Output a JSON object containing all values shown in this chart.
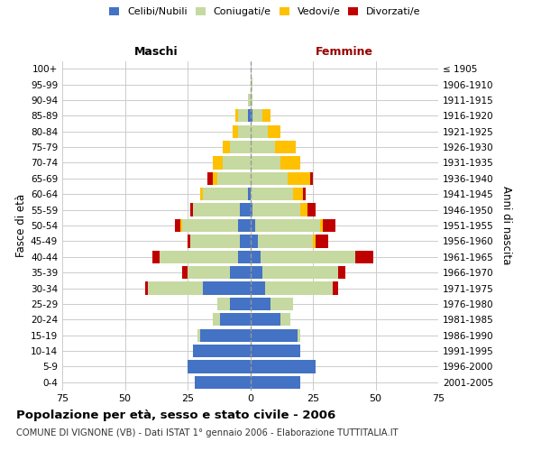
{
  "age_groups": [
    "0-4",
    "5-9",
    "10-14",
    "15-19",
    "20-24",
    "25-29",
    "30-34",
    "35-39",
    "40-44",
    "45-49",
    "50-54",
    "55-59",
    "60-64",
    "65-69",
    "70-74",
    "75-79",
    "80-84",
    "85-89",
    "90-94",
    "95-99",
    "100+"
  ],
  "birth_years": [
    "2001-2005",
    "1996-2000",
    "1991-1995",
    "1986-1990",
    "1981-1985",
    "1976-1980",
    "1971-1975",
    "1966-1970",
    "1961-1965",
    "1956-1960",
    "1951-1955",
    "1946-1950",
    "1941-1945",
    "1936-1940",
    "1931-1935",
    "1926-1930",
    "1921-1925",
    "1916-1920",
    "1911-1915",
    "1906-1910",
    "≤ 1905"
  ],
  "male": {
    "celibe": [
      22,
      25,
      23,
      20,
      12,
      8,
      19,
      8,
      5,
      4,
      5,
      4,
      1,
      0,
      0,
      0,
      0,
      1,
      0,
      0,
      0
    ],
    "coniugato": [
      0,
      0,
      0,
      1,
      3,
      5,
      22,
      17,
      31,
      20,
      22,
      19,
      18,
      13,
      11,
      8,
      5,
      4,
      1,
      0,
      0
    ],
    "vedovo": [
      0,
      0,
      0,
      0,
      0,
      0,
      0,
      0,
      0,
      0,
      1,
      0,
      1,
      2,
      4,
      3,
      2,
      1,
      0,
      0,
      0
    ],
    "divorziato": [
      0,
      0,
      0,
      0,
      0,
      0,
      1,
      2,
      3,
      1,
      2,
      1,
      0,
      2,
      0,
      0,
      0,
      0,
      0,
      0,
      0
    ]
  },
  "female": {
    "nubile": [
      20,
      26,
      20,
      19,
      12,
      8,
      6,
      5,
      4,
      3,
      2,
      1,
      0,
      0,
      0,
      0,
      0,
      1,
      0,
      0,
      0
    ],
    "coniugata": [
      0,
      0,
      0,
      1,
      4,
      9,
      27,
      30,
      38,
      22,
      26,
      19,
      17,
      15,
      12,
      10,
      7,
      4,
      1,
      1,
      0
    ],
    "vedova": [
      0,
      0,
      0,
      0,
      0,
      0,
      0,
      0,
      0,
      1,
      1,
      3,
      4,
      9,
      8,
      8,
      5,
      3,
      0,
      0,
      0
    ],
    "divorziata": [
      0,
      0,
      0,
      0,
      0,
      0,
      2,
      3,
      7,
      5,
      5,
      3,
      1,
      1,
      0,
      0,
      0,
      0,
      0,
      0,
      0
    ]
  },
  "colors": {
    "celibe": "#4472C4",
    "coniugato": "#C6D9A0",
    "vedovo": "#FFC000",
    "divorziato": "#C00000"
  },
  "xlim": 75,
  "title": "Popolazione per età, sesso e stato civile - 2006",
  "subtitle": "COMUNE DI VIGNONE (VB) - Dati ISTAT 1° gennaio 2006 - Elaborazione TUTTITALIA.IT",
  "ylabel_left": "Fasce di età",
  "ylabel_right": "Anni di nascita",
  "label_maschi": "Maschi",
  "label_femmine": "Femmine",
  "legend": [
    "Celibi/Nubili",
    "Coniugati/e",
    "Vedovi/e",
    "Divorzati/e"
  ],
  "background_color": "#ffffff",
  "grid_color": "#cccccc",
  "femmine_color": "#990000"
}
